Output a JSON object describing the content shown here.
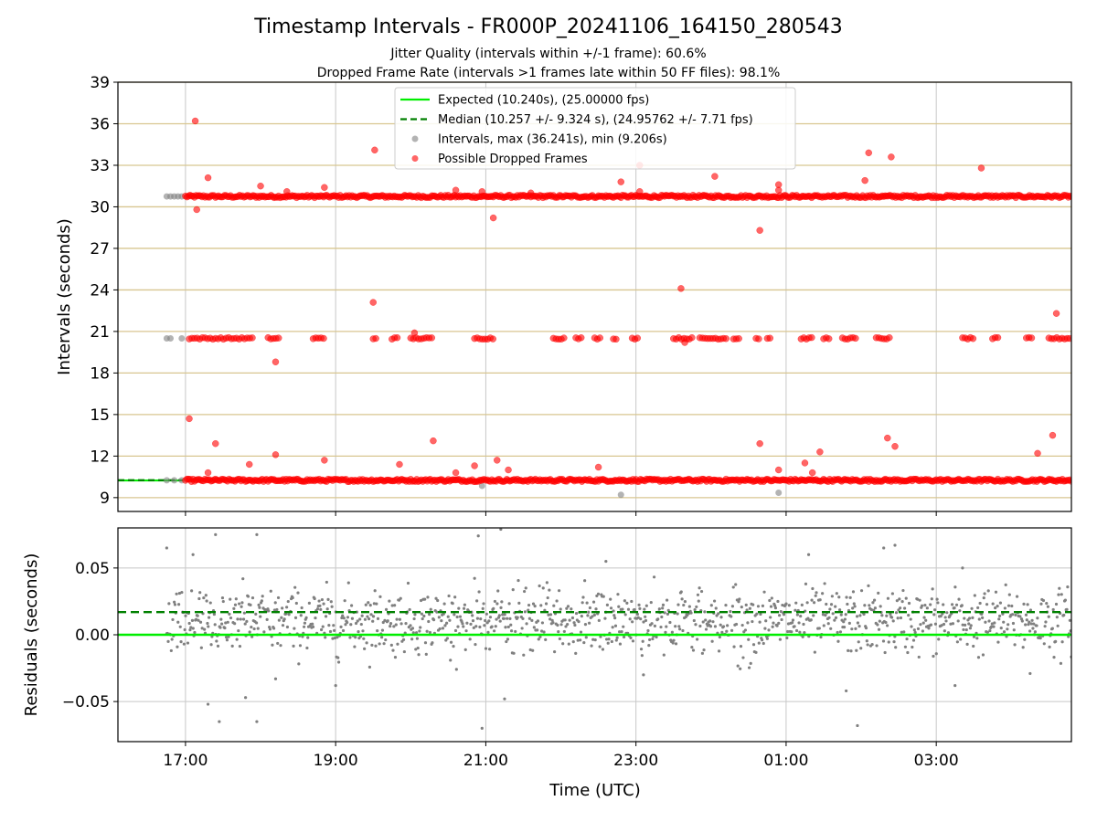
{
  "chart_data": [
    {
      "type": "scatter",
      "title": "Timestamp Intervals - FR000P_20241106_164150_280543",
      "subtitle_lines": [
        "Jitter Quality (intervals within +/-1 frame): 60.6%",
        "Dropped Frame Rate (intervals >1 frames late within 50 FF files): 98.1%"
      ],
      "xlabel": "",
      "ylabel": "Intervals (seconds)",
      "x_axis": "time",
      "xlim_hours": [
        16.1,
        28.8
      ],
      "ylim": [
        8,
        39
      ],
      "yticks": [
        9,
        12,
        15,
        18,
        21,
        24,
        27,
        30,
        33,
        36,
        39
      ],
      "hlines": [
        9,
        12,
        15,
        18,
        21,
        24,
        27,
        30,
        33,
        36,
        39
      ],
      "hline_color": "#d8c690",
      "grid": "vertical at x ticks",
      "legend_position": "top-center",
      "legend": [
        {
          "label": "Expected (10.240s), (25.00000 fps)",
          "kind": "line",
          "color": "#00ee00"
        },
        {
          "label": "Median (10.257 +/- 9.324 s), (24.95762 +/- 7.71 fps)",
          "kind": "dashed",
          "color": "#008000"
        },
        {
          "label": "Intervals, max (36.241s), min (9.206s)",
          "kind": "point",
          "color": "#808080"
        },
        {
          "label": "Possible Dropped Frames",
          "kind": "point",
          "color": "#ff0000"
        }
      ],
      "expected_value": 10.24,
      "median_value": 10.257,
      "series": [
        {
          "name": "Intervals, max (36.241s), min (9.206s)",
          "color": "#808080",
          "points": [
            [
              16.75,
              30.75
            ],
            [
              16.8,
              30.75
            ],
            [
              16.85,
              30.75
            ],
            [
              16.9,
              30.75
            ],
            [
              16.95,
              30.75
            ],
            [
              16.75,
              20.5
            ],
            [
              16.8,
              20.5
            ],
            [
              16.95,
              20.5
            ],
            [
              16.75,
              10.25
            ],
            [
              16.85,
              10.25
            ],
            [
              16.95,
              10.25
            ],
            [
              20.95,
              9.85
            ],
            [
              22.8,
              9.206
            ],
            [
              24.9,
              9.35
            ]
          ]
        },
        {
          "name": "Possible Dropped Frames",
          "color": "#ff0000",
          "bands": [
            {
              "y": 30.75,
              "start": 17.0,
              "end": 28.8
            },
            {
              "y": 10.25,
              "start": 17.0,
              "end": 28.8
            }
          ],
          "clusters_y": 20.5,
          "clusters": [
            [
              17.05,
              17.9
            ],
            [
              18.1,
              18.25
            ],
            [
              18.7,
              18.85
            ],
            [
              19.5,
              19.55
            ],
            [
              19.75,
              19.85
            ],
            [
              20.0,
              20.3
            ],
            [
              20.85,
              21.1
            ],
            [
              21.9,
              22.05
            ],
            [
              22.2,
              22.3
            ],
            [
              22.45,
              22.55
            ],
            [
              22.7,
              22.75
            ],
            [
              22.95,
              23.05
            ],
            [
              23.5,
              23.75
            ],
            [
              23.85,
              24.2
            ],
            [
              24.3,
              24.4
            ],
            [
              24.6,
              24.65
            ],
            [
              24.75,
              24.8
            ],
            [
              25.2,
              25.35
            ],
            [
              25.5,
              25.6
            ],
            [
              25.75,
              25.95
            ],
            [
              26.2,
              26.4
            ],
            [
              27.35,
              27.5
            ],
            [
              27.75,
              27.85
            ],
            [
              28.2,
              28.3
            ],
            [
              28.5,
              28.8
            ]
          ],
          "points": [
            [
              17.13,
              36.2
            ],
            [
              17.15,
              29.8
            ],
            [
              17.3,
              32.1
            ],
            [
              17.05,
              14.7
            ],
            [
              17.4,
              12.9
            ],
            [
              17.3,
              10.8
            ],
            [
              17.85,
              11.4
            ],
            [
              18.0,
              31.5
            ],
            [
              18.2,
              18.8
            ],
            [
              18.2,
              12.1
            ],
            [
              18.35,
              31.1
            ],
            [
              18.85,
              31.4
            ],
            [
              18.85,
              11.7
            ],
            [
              19.5,
              23.1
            ],
            [
              19.52,
              34.1
            ],
            [
              19.85,
              11.4
            ],
            [
              20.05,
              20.9
            ],
            [
              20.3,
              13.1
            ],
            [
              20.6,
              31.2
            ],
            [
              20.6,
              10.8
            ],
            [
              20.85,
              11.3
            ],
            [
              20.95,
              31.1
            ],
            [
              21.1,
              29.2
            ],
            [
              21.15,
              11.7
            ],
            [
              21.3,
              11.0
            ],
            [
              21.6,
              31.0
            ],
            [
              22.5,
              11.2
            ],
            [
              22.8,
              31.8
            ],
            [
              23.05,
              33.0
            ],
            [
              23.05,
              31.1
            ],
            [
              23.6,
              24.1
            ],
            [
              23.65,
              20.2
            ],
            [
              24.05,
              32.2
            ],
            [
              24.65,
              28.3
            ],
            [
              24.65,
              12.9
            ],
            [
              24.9,
              31.6
            ],
            [
              24.9,
              31.2
            ],
            [
              24.9,
              11.0
            ],
            [
              25.25,
              11.5
            ],
            [
              25.35,
              10.8
            ],
            [
              25.45,
              12.3
            ],
            [
              26.05,
              31.9
            ],
            [
              26.1,
              33.9
            ],
            [
              26.4,
              33.6
            ],
            [
              26.35,
              13.3
            ],
            [
              26.45,
              12.7
            ],
            [
              27.6,
              32.8
            ],
            [
              28.35,
              12.2
            ],
            [
              28.55,
              13.5
            ],
            [
              28.6,
              22.3
            ]
          ]
        }
      ]
    },
    {
      "type": "scatter",
      "title": "",
      "xlabel": "Time (UTC)",
      "ylabel": "Residuals (seconds)",
      "x_axis": "time",
      "xlim_hours": [
        16.1,
        28.8
      ],
      "xticks": [
        "17:00",
        "19:00",
        "21:00",
        "23:00",
        "01:00",
        "03:00"
      ],
      "xtick_hours": [
        17,
        19,
        21,
        23,
        25,
        27
      ],
      "ylim": [
        -0.08,
        0.08
      ],
      "yticks": [
        -0.05,
        0.0,
        0.05
      ],
      "ytick_labels": [
        "−0.05",
        "0.00",
        "0.05"
      ],
      "grid": "on",
      "hlines": [
        {
          "y": 0.0,
          "color": "#00ee00",
          "style": "solid"
        },
        {
          "y": 0.017,
          "color": "#008000",
          "style": "dashed"
        }
      ],
      "series": [
        {
          "name": "",
          "color": "#808080",
          "x_range_hours": [
            16.75,
            28.8
          ],
          "n_points": 1200,
          "center": 0.01,
          "spread": 0.012,
          "outliers": [
            [
              16.75,
              0.065
            ],
            [
              17.1,
              0.06
            ],
            [
              17.4,
              0.075
            ],
            [
              17.95,
              0.075
            ],
            [
              17.3,
              -0.052
            ],
            [
              17.45,
              -0.065
            ],
            [
              17.95,
              -0.065
            ],
            [
              17.8,
              -0.047
            ],
            [
              18.2,
              -0.033
            ],
            [
              19.0,
              -0.038
            ],
            [
              20.9,
              0.074
            ],
            [
              21.2,
              0.079
            ],
            [
              20.95,
              -0.07
            ],
            [
              21.25,
              -0.048
            ],
            [
              22.6,
              0.055
            ],
            [
              23.1,
              -0.03
            ],
            [
              25.3,
              0.06
            ],
            [
              25.8,
              -0.042
            ],
            [
              25.95,
              -0.068
            ],
            [
              26.3,
              0.065
            ],
            [
              26.45,
              0.067
            ],
            [
              27.25,
              -0.038
            ],
            [
              27.35,
              0.05
            ],
            [
              28.25,
              -0.029
            ]
          ]
        }
      ]
    }
  ]
}
